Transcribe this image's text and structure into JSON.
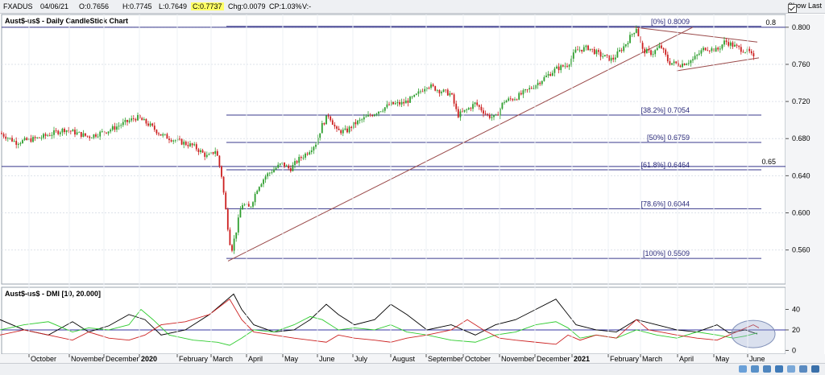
{
  "header": {
    "symbol": "FXADUS",
    "date": "04/06/21",
    "open": "O:0.7656",
    "high": "H:0.7745",
    "low": "L:0.7649",
    "close": "C:0.7737",
    "change": "Chg:0.0079",
    "change_pct": "CP:1.03%",
    "volume": "V:-",
    "show_last": "Show Last"
  },
  "chart_data": [
    {
      "type": "candlestick",
      "title": "Aust$-us$ - Daily CandleStick Chart",
      "y_ticks": [
        "0.800",
        "0.760",
        "0.720",
        "0.680",
        "0.640",
        "0.600",
        "0.560"
      ],
      "ylim": [
        0.525,
        0.812
      ],
      "x_labels": [
        "October",
        "November",
        "December",
        "2020",
        "February",
        "March",
        "April",
        "May",
        "June",
        "July",
        "August",
        "September",
        "October",
        "November",
        "December",
        "2021",
        "February",
        "March",
        "April",
        "May",
        "June"
      ],
      "price_path": [
        [
          0,
          0.686
        ],
        [
          20,
          0.676
        ],
        [
          50,
          0.681
        ],
        [
          80,
          0.69
        ],
        [
          110,
          0.682
        ],
        [
          135,
          0.689
        ],
        [
          150,
          0.695
        ],
        [
          170,
          0.703
        ],
        [
          185,
          0.695
        ],
        [
          200,
          0.684
        ],
        [
          215,
          0.679
        ],
        [
          240,
          0.672
        ],
        [
          258,
          0.66
        ],
        [
          268,
          0.668
        ],
        [
          275,
          0.64
        ],
        [
          282,
          0.59
        ],
        [
          287,
          0.558
        ],
        [
          293,
          0.58
        ],
        [
          300,
          0.61
        ],
        [
          310,
          0.605
        ],
        [
          320,
          0.628
        ],
        [
          330,
          0.64
        ],
        [
          340,
          0.647
        ],
        [
          350,
          0.653
        ],
        [
          360,
          0.647
        ],
        [
          370,
          0.657
        ],
        [
          380,
          0.664
        ],
        [
          392,
          0.675
        ],
        [
          400,
          0.695
        ],
        [
          408,
          0.706
        ],
        [
          418,
          0.688
        ],
        [
          430,
          0.688
        ],
        [
          440,
          0.696
        ],
        [
          455,
          0.703
        ],
        [
          470,
          0.71
        ],
        [
          485,
          0.717
        ],
        [
          500,
          0.718
        ],
        [
          515,
          0.725
        ],
        [
          530,
          0.738
        ],
        [
          545,
          0.732
        ],
        [
          560,
          0.728
        ],
        [
          568,
          0.705
        ],
        [
          578,
          0.71
        ],
        [
          590,
          0.718
        ],
        [
          605,
          0.705
        ],
        [
          615,
          0.702
        ],
        [
          625,
          0.72
        ],
        [
          640,
          0.724
        ],
        [
          660,
          0.735
        ],
        [
          675,
          0.745
        ],
        [
          690,
          0.755
        ],
        [
          705,
          0.76
        ],
        [
          715,
          0.775
        ],
        [
          730,
          0.778
        ],
        [
          745,
          0.77
        ],
        [
          760,
          0.765
        ],
        [
          775,
          0.78
        ],
        [
          790,
          0.8
        ],
        [
          797,
          0.775
        ],
        [
          810,
          0.772
        ],
        [
          820,
          0.78
        ],
        [
          830,
          0.762
        ],
        [
          845,
          0.76
        ],
        [
          860,
          0.765
        ],
        [
          875,
          0.778
        ],
        [
          890,
          0.775
        ],
        [
          900,
          0.785
        ],
        [
          915,
          0.778
        ],
        [
          930,
          0.773
        ],
        [
          937,
          0.764
        ]
      ],
      "fibonacci": [
        {
          "label": "[0%] 0.8009",
          "value": 0.8009
        },
        {
          "label": "[38.2%] 0.7054",
          "value": 0.7054
        },
        {
          "label": "[50%] 0.6759",
          "value": 0.6759
        },
        {
          "label": "[61.8%] 0.6464",
          "value": 0.6464
        },
        {
          "label": "[78.6%] 0.6044",
          "value": 0.6044
        },
        {
          "label": "[100%] 0.5509",
          "value": 0.5509
        }
      ],
      "horizontal_levels": [
        {
          "label": "0.8",
          "value": 0.8
        },
        {
          "label": "0.65",
          "value": 0.65
        }
      ],
      "trendlines": [
        {
          "name": "uptrend",
          "points": [
            [
              283,
              0.548
            ],
            [
              860,
              0.8
            ]
          ]
        },
        {
          "name": "triangle-upper",
          "points": [
            [
              787,
              0.8
            ],
            [
              940,
              0.784
            ]
          ]
        },
        {
          "name": "triangle-lower",
          "points": [
            [
              840,
              0.753
            ],
            [
              942,
              0.767
            ]
          ]
        }
      ],
      "colors": {
        "up": "#2e9e2e",
        "down": "#cc1f1f",
        "fib": "#3a3a8c",
        "trend": "#9a4a4a"
      }
    },
    {
      "type": "line",
      "title": "Aust$-us$ - DMI [10, 20.000]",
      "y_ticks": [
        "40",
        "20",
        "0"
      ],
      "ylim": [
        -2,
        60
      ],
      "threshold": 20,
      "series": [
        {
          "color": "#000000",
          "values": [
            [
              0,
              30
            ],
            [
              30,
              20
            ],
            [
              60,
              15
            ],
            [
              90,
              28
            ],
            [
              110,
              18
            ],
            [
              135,
              24
            ],
            [
              160,
              35
            ],
            [
              180,
              30
            ],
            [
              200,
              15
            ],
            [
              230,
              20
            ],
            [
              260,
              35
            ],
            [
              290,
              55
            ],
            [
              300,
              40
            ],
            [
              315,
              25
            ],
            [
              340,
              18
            ],
            [
              365,
              20
            ],
            [
              385,
              30
            ],
            [
              405,
              45
            ],
            [
              420,
              35
            ],
            [
              440,
              25
            ],
            [
              465,
              30
            ],
            [
              485,
              45
            ],
            [
              505,
              35
            ],
            [
              530,
              20
            ],
            [
              560,
              25
            ],
            [
              590,
              15
            ],
            [
              615,
              25
            ],
            [
              640,
              30
            ],
            [
              665,
              40
            ],
            [
              690,
              50
            ],
            [
              700,
              40
            ],
            [
              715,
              25
            ],
            [
              740,
              20
            ],
            [
              765,
              18
            ],
            [
              790,
              30
            ],
            [
              815,
              25
            ],
            [
              840,
              20
            ],
            [
              865,
              18
            ],
            [
              890,
              25
            ],
            [
              905,
              17
            ],
            [
              925,
              20
            ],
            [
              940,
              16
            ]
          ]
        },
        {
          "color": "#2fcc2f",
          "values": [
            [
              0,
              20
            ],
            [
              30,
              25
            ],
            [
              60,
              28
            ],
            [
              90,
              18
            ],
            [
              110,
              22
            ],
            [
              135,
              20
            ],
            [
              160,
              25
            ],
            [
              175,
              40
            ],
            [
              190,
              30
            ],
            [
              210,
              15
            ],
            [
              240,
              10
            ],
            [
              270,
              8
            ],
            [
              285,
              5
            ],
            [
              300,
              12
            ],
            [
              315,
              20
            ],
            [
              340,
              18
            ],
            [
              365,
              25
            ],
            [
              385,
              33
            ],
            [
              400,
              30
            ],
            [
              420,
              20
            ],
            [
              440,
              22
            ],
            [
              465,
              20
            ],
            [
              485,
              25
            ],
            [
              505,
              18
            ],
            [
              530,
              15
            ],
            [
              560,
              10
            ],
            [
              590,
              8
            ],
            [
              615,
              15
            ],
            [
              640,
              18
            ],
            [
              665,
              25
            ],
            [
              690,
              28
            ],
            [
              705,
              22
            ],
            [
              720,
              12
            ],
            [
              740,
              15
            ],
            [
              765,
              12
            ],
            [
              790,
              20
            ],
            [
              815,
              15
            ],
            [
              840,
              12
            ],
            [
              865,
              18
            ],
            [
              890,
              15
            ],
            [
              910,
              12
            ],
            [
              925,
              14
            ],
            [
              940,
              17
            ]
          ]
        },
        {
          "color": "#cc2222",
          "values": [
            [
              0,
              15
            ],
            [
              30,
              20
            ],
            [
              60,
              15
            ],
            [
              90,
              10
            ],
            [
              110,
              18
            ],
            [
              135,
              12
            ],
            [
              160,
              10
            ],
            [
              180,
              15
            ],
            [
              200,
              25
            ],
            [
              230,
              28
            ],
            [
              260,
              35
            ],
            [
              285,
              50
            ],
            [
              300,
              30
            ],
            [
              315,
              18
            ],
            [
              340,
              15
            ],
            [
              365,
              12
            ],
            [
              385,
              10
            ],
            [
              405,
              8
            ],
            [
              420,
              15
            ],
            [
              440,
              12
            ],
            [
              465,
              10
            ],
            [
              485,
              8
            ],
            [
              505,
              12
            ],
            [
              530,
              15
            ],
            [
              560,
              20
            ],
            [
              580,
              30
            ],
            [
              600,
              20
            ],
            [
              620,
              12
            ],
            [
              640,
              10
            ],
            [
              665,
              8
            ],
            [
              690,
              6
            ],
            [
              705,
              15
            ],
            [
              720,
              10
            ],
            [
              740,
              15
            ],
            [
              765,
              12
            ],
            [
              790,
              30
            ],
            [
              805,
              20
            ],
            [
              820,
              18
            ],
            [
              840,
              15
            ],
            [
              865,
              12
            ],
            [
              890,
              10
            ],
            [
              905,
              15
            ],
            [
              920,
              20
            ],
            [
              935,
              25
            ],
            [
              942,
              22
            ]
          ]
        }
      ]
    }
  ]
}
